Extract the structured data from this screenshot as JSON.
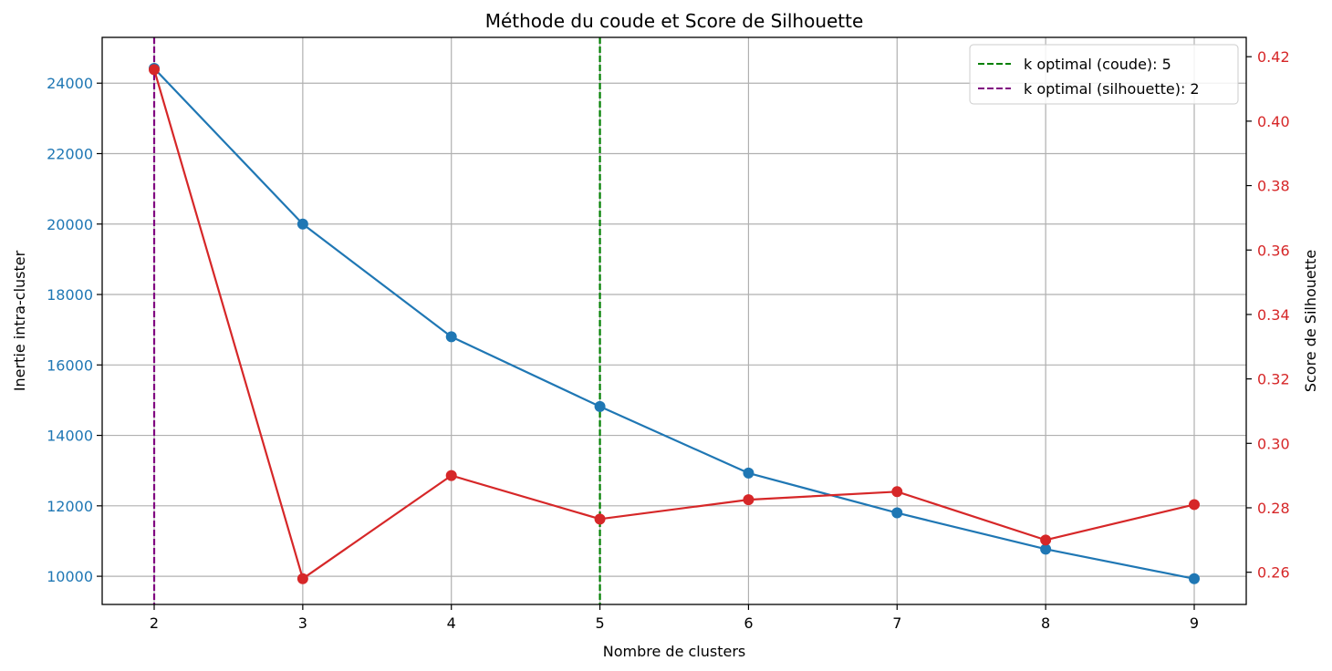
{
  "chart_data": {
    "type": "line",
    "title": "Méthode du coude et Score de Silhouette",
    "xlabel": "Nombre de clusters",
    "ylabel_left": "Inertie intra-cluster",
    "ylabel_right": "Score de Silhouette",
    "x": [
      2,
      3,
      4,
      5,
      6,
      7,
      8,
      9
    ],
    "xlim": [
      1.65,
      9.35
    ],
    "ylim_left": [
      9200,
      25300
    ],
    "ylim_right": [
      0.25,
      0.426
    ],
    "yticks_left": [
      10000,
      12000,
      14000,
      16000,
      18000,
      20000,
      22000,
      24000
    ],
    "yticks_right": [
      0.26,
      0.28,
      0.3,
      0.32,
      0.34,
      0.36,
      0.38,
      0.4,
      0.42
    ],
    "grid": true,
    "legend_position": "top-right",
    "series": [
      {
        "axis": "left",
        "color": "#1f77b4",
        "values": [
          24420,
          20000,
          16800,
          14820,
          12930,
          11800,
          10770,
          9930
        ]
      },
      {
        "axis": "right",
        "color": "#d62728",
        "values": [
          0.416,
          0.258,
          0.29,
          0.2765,
          0.2825,
          0.285,
          0.27,
          0.281
        ]
      }
    ],
    "reference_lines": [
      {
        "name": "k optimal (coude): 5",
        "x": 5,
        "color": "#008000",
        "style": "dashed"
      },
      {
        "name": "k optimal (silhouette): 2",
        "x": 2,
        "color": "#800080",
        "style": "dashed"
      }
    ],
    "colors": {
      "left_axis": "#1f77b4",
      "right_axis": "#d62728",
      "grid": "#b0b0b0"
    }
  }
}
